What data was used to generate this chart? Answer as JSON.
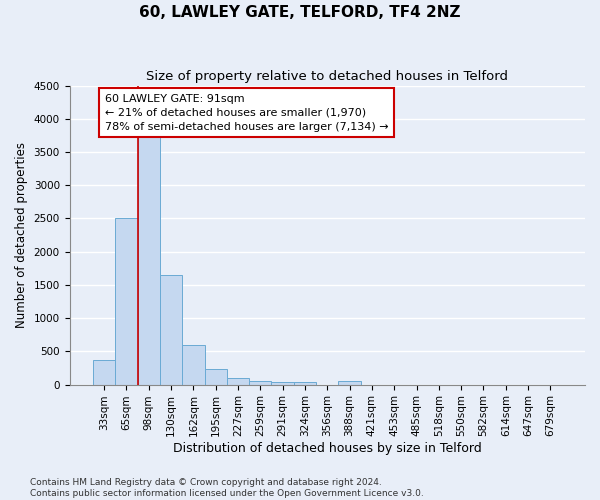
{
  "title": "60, LAWLEY GATE, TELFORD, TF4 2NZ",
  "subtitle": "Size of property relative to detached houses in Telford",
  "xlabel": "Distribution of detached houses by size in Telford",
  "ylabel": "Number of detached properties",
  "categories": [
    "33sqm",
    "65sqm",
    "98sqm",
    "130sqm",
    "162sqm",
    "195sqm",
    "227sqm",
    "259sqm",
    "291sqm",
    "324sqm",
    "356sqm",
    "388sqm",
    "421sqm",
    "453sqm",
    "485sqm",
    "518sqm",
    "550sqm",
    "582sqm",
    "614sqm",
    "647sqm",
    "679sqm"
  ],
  "values": [
    370,
    2500,
    3750,
    1650,
    590,
    230,
    100,
    60,
    40,
    40,
    0,
    60,
    0,
    0,
    0,
    0,
    0,
    0,
    0,
    0,
    0
  ],
  "bar_color": "#c5d8f0",
  "bar_edge_color": "#6aaad4",
  "ylim": [
    0,
    4500
  ],
  "yticks": [
    0,
    500,
    1000,
    1500,
    2000,
    2500,
    3000,
    3500,
    4000,
    4500
  ],
  "vline_x": 1.5,
  "vline_color": "#cc0000",
  "annotation_text": "60 LAWLEY GATE: 91sqm\n← 21% of detached houses are smaller (1,970)\n78% of semi-detached houses are larger (7,134) →",
  "footer_text": "Contains HM Land Registry data © Crown copyright and database right 2024.\nContains public sector information licensed under the Open Government Licence v3.0.",
  "title_fontsize": 11,
  "subtitle_fontsize": 9.5,
  "xlabel_fontsize": 9,
  "ylabel_fontsize": 8.5,
  "tick_fontsize": 7.5,
  "annotation_fontsize": 8,
  "footer_fontsize": 6.5,
  "bg_color": "#e8eef8",
  "plot_bg_color": "#e8eef8",
  "grid_color": "#ffffff"
}
